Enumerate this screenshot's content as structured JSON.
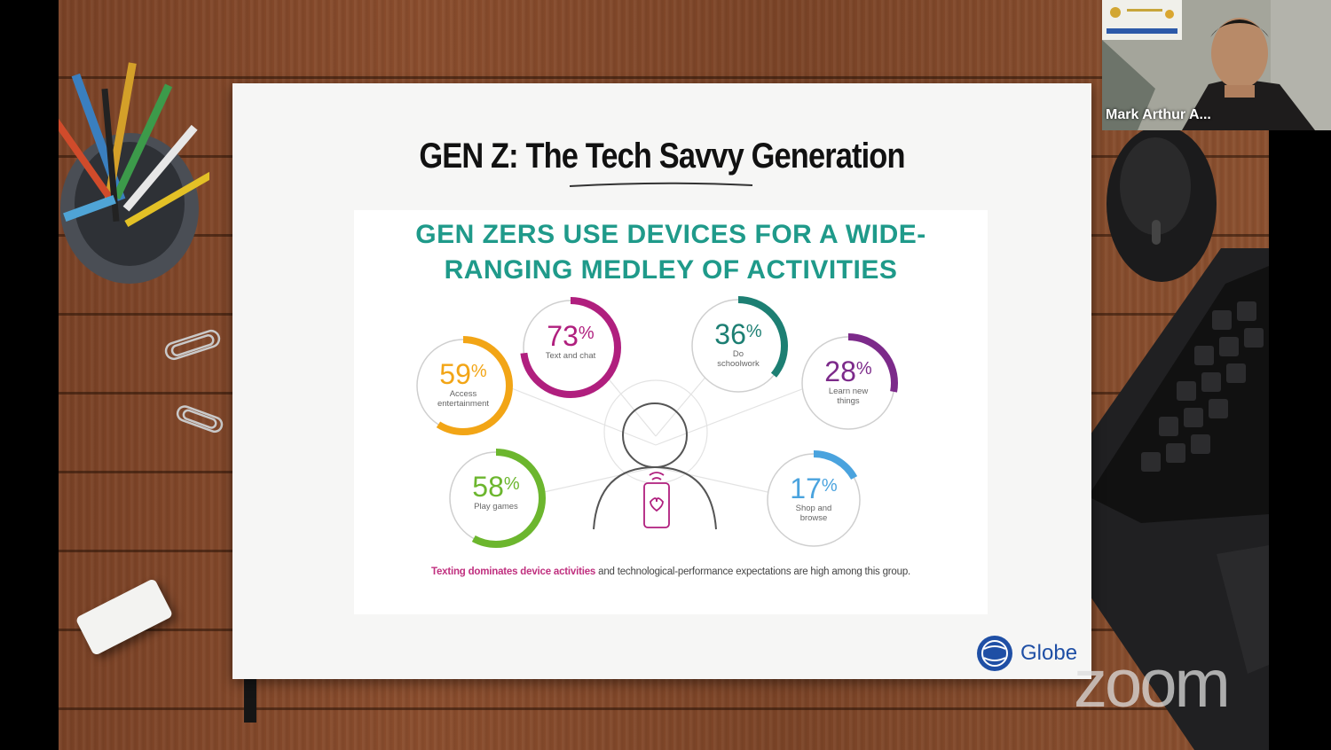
{
  "slide": {
    "title": "GEN Z: The Tech Savvy Generation",
    "heading_line1": "GEN ZERS USE DEVICES FOR A WIDE-",
    "heading_line2": "RANGING MEDLEY OF ACTIVITIES",
    "activities": [
      {
        "percent": 59,
        "label_line1": "Access",
        "label_line2": "entertainment",
        "color": "#f2a516"
      },
      {
        "percent": 73,
        "label_line1": "Text and chat",
        "label_line2": "",
        "color": "#b01f7e"
      },
      {
        "percent": 36,
        "label_line1": "Do",
        "label_line2": "schoolwork",
        "color": "#1d7f73"
      },
      {
        "percent": 28,
        "label_line1": "Learn new",
        "label_line2": "things",
        "color": "#7c2a8a"
      },
      {
        "percent": 58,
        "label_line1": "Play games",
        "label_line2": "",
        "color": "#6cb62e"
      },
      {
        "percent": 17,
        "label_line1": "Shop and",
        "label_line2": "browse",
        "color": "#4aa3de"
      }
    ],
    "footnote_highlight": "Texting dominates device activities",
    "footnote_rest": " and technological-performance expectations are high among this group.",
    "brand": "Globe"
  },
  "video": {
    "participant_name": "Mark Arthur A...",
    "watermark": "zoom"
  }
}
